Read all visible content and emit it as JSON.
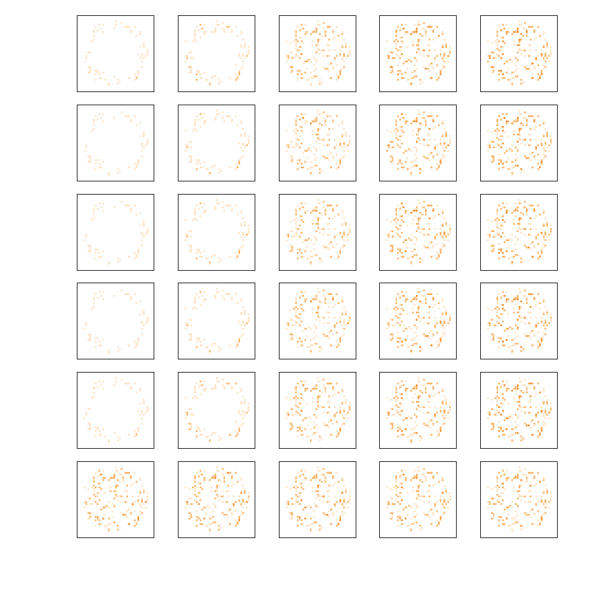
{
  "chart_data": {
    "type": "heatmap",
    "layout": {
      "rows": 6,
      "cols": 5
    },
    "grid_size": 40,
    "colormap": [
      "#ffffff",
      "#fce3c4",
      "#f9b468",
      "#f28e2b"
    ],
    "axes_visible": false,
    "panels": [
      {
        "row": 0,
        "col": 0,
        "mode": "ring",
        "intensity": 0.35
      },
      {
        "row": 0,
        "col": 1,
        "mode": "ring",
        "intensity": 0.55
      },
      {
        "row": 0,
        "col": 2,
        "mode": "disk",
        "intensity": 0.75
      },
      {
        "row": 0,
        "col": 3,
        "mode": "disk",
        "intensity": 0.95
      },
      {
        "row": 0,
        "col": 4,
        "mode": "disk",
        "intensity": 1.0
      },
      {
        "row": 1,
        "col": 0,
        "mode": "ring",
        "intensity": 0.3
      },
      {
        "row": 1,
        "col": 1,
        "mode": "ring",
        "intensity": 0.5
      },
      {
        "row": 1,
        "col": 2,
        "mode": "disk",
        "intensity": 0.75
      },
      {
        "row": 1,
        "col": 3,
        "mode": "disk",
        "intensity": 0.95
      },
      {
        "row": 1,
        "col": 4,
        "mode": "disk",
        "intensity": 1.0
      },
      {
        "row": 2,
        "col": 0,
        "mode": "ring",
        "intensity": 0.3
      },
      {
        "row": 2,
        "col": 1,
        "mode": "ring",
        "intensity": 0.5
      },
      {
        "row": 2,
        "col": 2,
        "mode": "disk",
        "intensity": 0.75
      },
      {
        "row": 2,
        "col": 3,
        "mode": "disk",
        "intensity": 0.95
      },
      {
        "row": 2,
        "col": 4,
        "mode": "disk",
        "intensity": 1.0
      },
      {
        "row": 3,
        "col": 0,
        "mode": "ring",
        "intensity": 0.3
      },
      {
        "row": 3,
        "col": 1,
        "mode": "ring",
        "intensity": 0.5
      },
      {
        "row": 3,
        "col": 2,
        "mode": "disk",
        "intensity": 0.75
      },
      {
        "row": 3,
        "col": 3,
        "mode": "disk",
        "intensity": 0.95
      },
      {
        "row": 3,
        "col": 4,
        "mode": "disk",
        "intensity": 1.0
      },
      {
        "row": 4,
        "col": 0,
        "mode": "ring",
        "intensity": 0.35
      },
      {
        "row": 4,
        "col": 1,
        "mode": "ring",
        "intensity": 0.6
      },
      {
        "row": 4,
        "col": 2,
        "mode": "disk",
        "intensity": 0.8
      },
      {
        "row": 4,
        "col": 3,
        "mode": "disk",
        "intensity": 0.95
      },
      {
        "row": 4,
        "col": 4,
        "mode": "disk",
        "intensity": 1.0
      },
      {
        "row": 5,
        "col": 0,
        "mode": "disk",
        "intensity": 0.85
      },
      {
        "row": 5,
        "col": 1,
        "mode": "disk",
        "intensity": 0.85
      },
      {
        "row": 5,
        "col": 2,
        "mode": "disk",
        "intensity": 0.85
      },
      {
        "row": 5,
        "col": 3,
        "mode": "disk",
        "intensity": 0.85
      },
      {
        "row": 5,
        "col": 4,
        "mode": "disk",
        "intensity": 0.85
      }
    ]
  }
}
